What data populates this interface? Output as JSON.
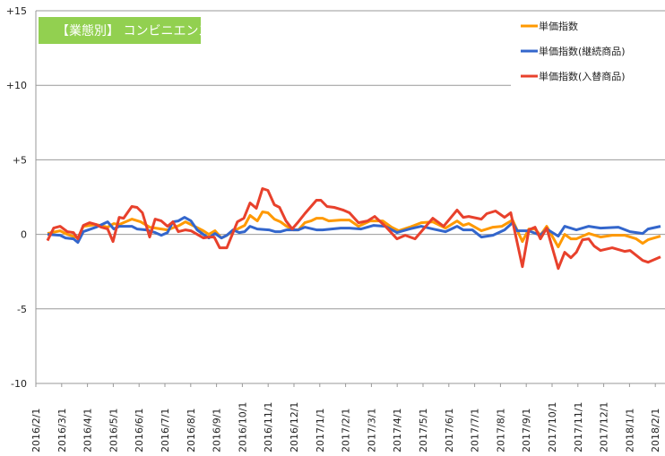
{
  "chart_data": {
    "type": "line",
    "title": "【業態別】 コンビニエンスストア",
    "colors": {
      "title_bg": "#92d050",
      "grid": "#999999"
    },
    "x_unit": "months since 2016/2/1",
    "x_tick_labels": [
      "2016/2/1",
      "2016/3/1",
      "2016/4/1",
      "2016/5/1",
      "2016/6/1",
      "2016/7/1",
      "2016/8/1",
      "2016/9/1",
      "2016/10/1",
      "2016/11/1",
      "2016/12/1",
      "2017/1/1",
      "2017/2/1",
      "2017/3/1",
      "2017/4/1",
      "2017/5/1",
      "2017/6/1",
      "2017/7/1",
      "2017/8/1",
      "2017/9/1",
      "2017/10/1",
      "2017/11/1",
      "2017/12/1",
      "2018/1/1",
      "2018/2/1"
    ],
    "xlim": [
      0,
      24.35
    ],
    "ylim": [
      -10,
      15
    ],
    "y_ticks": [
      {
        "v": 15,
        "label": "+15"
      },
      {
        "v": 10,
        "label": "+10"
      },
      {
        "v": 5,
        "label": "+5"
      },
      {
        "v": 0,
        "label": "0"
      },
      {
        "v": -5,
        "label": "-5"
      },
      {
        "v": -10,
        "label": "-10"
      }
    ],
    "grid": true,
    "legend_position": "top-right",
    "series": [
      {
        "name": "単価指数",
        "color": "#ff9900",
        "points": [
          [
            0.45,
            0.06
          ],
          [
            0.94,
            0.24
          ],
          [
            1.22,
            0
          ],
          [
            1.63,
            -0.24
          ],
          [
            1.84,
            0.54
          ],
          [
            2.33,
            0.66
          ],
          [
            2.78,
            0.48
          ],
          [
            3.02,
            0.72
          ],
          [
            3.23,
            0.66
          ],
          [
            3.72,
            1.02
          ],
          [
            4.06,
            0.84
          ],
          [
            4.41,
            0.48
          ],
          [
            4.86,
            0.36
          ],
          [
            5.1,
            0.3
          ],
          [
            5.56,
            0.6
          ],
          [
            5.8,
            0.84
          ],
          [
            6.01,
            0.66
          ],
          [
            6.49,
            0.24
          ],
          [
            6.7,
            0
          ],
          [
            6.94,
            0.24
          ],
          [
            7.19,
            -0.24
          ],
          [
            7.4,
            -0.06
          ],
          [
            7.88,
            0.42
          ],
          [
            8.09,
            0.6
          ],
          [
            8.3,
            1.27
          ],
          [
            8.58,
            0.9
          ],
          [
            8.78,
            1.51
          ],
          [
            8.99,
            1.45
          ],
          [
            9.24,
            1.02
          ],
          [
            9.48,
            0.84
          ],
          [
            9.72,
            0.54
          ],
          [
            9.97,
            0.3
          ],
          [
            10.17,
            0.3
          ],
          [
            10.42,
            0.78
          ],
          [
            10.66,
            0.9
          ],
          [
            10.87,
            1.08
          ],
          [
            11.11,
            1.08
          ],
          [
            11.35,
            0.9
          ],
          [
            11.81,
            0.96
          ],
          [
            12.15,
            0.96
          ],
          [
            12.5,
            0.54
          ],
          [
            12.95,
            0.9
          ],
          [
            13.44,
            0.9
          ],
          [
            13.78,
            0.48
          ],
          [
            14.06,
            0.24
          ],
          [
            14.48,
            0.48
          ],
          [
            14.93,
            0.78
          ],
          [
            15.38,
            0.84
          ],
          [
            15.87,
            0.42
          ],
          [
            16.32,
            0.9
          ],
          [
            16.56,
            0.6
          ],
          [
            16.77,
            0.72
          ],
          [
            17.26,
            0.24
          ],
          [
            17.71,
            0.48
          ],
          [
            18.06,
            0.54
          ],
          [
            18.47,
            0.96
          ],
          [
            18.85,
            -0.48
          ],
          [
            19.1,
            0.36
          ],
          [
            19.34,
            0.36
          ],
          [
            19.55,
            -0.06
          ],
          [
            19.79,
            0.54
          ],
          [
            20.24,
            -0.84
          ],
          [
            20.49,
            0
          ],
          [
            20.73,
            -0.3
          ],
          [
            20.94,
            -0.3
          ],
          [
            21.42,
            0.06
          ],
          [
            21.88,
            -0.18
          ],
          [
            22.33,
            -0.06
          ],
          [
            22.81,
            -0.06
          ],
          [
            23.26,
            -0.3
          ],
          [
            23.51,
            -0.6
          ],
          [
            23.72,
            -0.36
          ],
          [
            24.2,
            -0.12
          ]
        ]
      },
      {
        "name": "単価指数(継続商品)",
        "color": "#3366cc",
        "points": [
          [
            0.45,
            0
          ],
          [
            0.94,
            -0.06
          ],
          [
            1.15,
            -0.24
          ],
          [
            1.46,
            -0.3
          ],
          [
            1.63,
            -0.54
          ],
          [
            1.84,
            0.18
          ],
          [
            2.33,
            0.48
          ],
          [
            2.78,
            0.84
          ],
          [
            3.02,
            0.36
          ],
          [
            3.23,
            0.54
          ],
          [
            3.72,
            0.54
          ],
          [
            3.92,
            0.36
          ],
          [
            4.27,
            0.3
          ],
          [
            4.62,
            0.12
          ],
          [
            4.86,
            -0.06
          ],
          [
            5.1,
            0.12
          ],
          [
            5.31,
            0.84
          ],
          [
            5.52,
            0.9
          ],
          [
            5.76,
            1.14
          ],
          [
            6.01,
            0.9
          ],
          [
            6.25,
            0.3
          ],
          [
            6.49,
            0
          ],
          [
            6.7,
            -0.24
          ],
          [
            6.94,
            0.06
          ],
          [
            7.19,
            -0.24
          ],
          [
            7.4,
            -0.06
          ],
          [
            7.64,
            0.3
          ],
          [
            7.88,
            0.12
          ],
          [
            8.09,
            0.18
          ],
          [
            8.3,
            0.54
          ],
          [
            8.58,
            0.36
          ],
          [
            9.03,
            0.3
          ],
          [
            9.27,
            0.18
          ],
          [
            9.48,
            0.18
          ],
          [
            9.72,
            0.3
          ],
          [
            10.17,
            0.3
          ],
          [
            10.42,
            0.48
          ],
          [
            10.87,
            0.3
          ],
          [
            11.11,
            0.3
          ],
          [
            11.81,
            0.42
          ],
          [
            12.15,
            0.42
          ],
          [
            12.6,
            0.36
          ],
          [
            13.09,
            0.6
          ],
          [
            13.54,
            0.54
          ],
          [
            13.99,
            0.12
          ],
          [
            14.48,
            0.36
          ],
          [
            14.93,
            0.54
          ],
          [
            15.38,
            0.36
          ],
          [
            15.87,
            0.18
          ],
          [
            16.32,
            0.54
          ],
          [
            16.56,
            0.3
          ],
          [
            16.91,
            0.3
          ],
          [
            17.26,
            -0.18
          ],
          [
            17.71,
            -0.06
          ],
          [
            18.16,
            0.3
          ],
          [
            18.47,
            0.78
          ],
          [
            18.65,
            0.24
          ],
          [
            19.1,
            0.24
          ],
          [
            19.55,
            -0.06
          ],
          [
            19.79,
            0.36
          ],
          [
            20.24,
            -0.12
          ],
          [
            20.49,
            0.54
          ],
          [
            20.94,
            0.3
          ],
          [
            21.42,
            0.54
          ],
          [
            21.88,
            0.42
          ],
          [
            22.57,
            0.48
          ],
          [
            23.02,
            0.18
          ],
          [
            23.51,
            0.06
          ],
          [
            23.72,
            0.36
          ],
          [
            24.2,
            0.54
          ]
        ]
      },
      {
        "name": "単価指数(入替商品)",
        "color": "#e8412c",
        "points": [
          [
            0.45,
            -0.42
          ],
          [
            0.69,
            0.42
          ],
          [
            0.94,
            0.54
          ],
          [
            1.22,
            0.18
          ],
          [
            1.46,
            0.12
          ],
          [
            1.63,
            -0.3
          ],
          [
            1.84,
            0.6
          ],
          [
            2.08,
            0.78
          ],
          [
            2.33,
            0.66
          ],
          [
            2.53,
            0.48
          ],
          [
            2.78,
            0.36
          ],
          [
            2.99,
            -0.48
          ],
          [
            3.23,
            1.14
          ],
          [
            3.4,
            1.08
          ],
          [
            3.72,
            1.87
          ],
          [
            3.92,
            1.81
          ],
          [
            4.13,
            1.45
          ],
          [
            4.41,
            -0.18
          ],
          [
            4.62,
            1.02
          ],
          [
            4.86,
            0.9
          ],
          [
            5.1,
            0.54
          ],
          [
            5.31,
            0.84
          ],
          [
            5.52,
            0.18
          ],
          [
            5.8,
            0.3
          ],
          [
            6.01,
            0.24
          ],
          [
            6.25,
            0
          ],
          [
            6.49,
            -0.24
          ],
          [
            6.7,
            -0.18
          ],
          [
            6.91,
            -0.18
          ],
          [
            7.12,
            -0.9
          ],
          [
            7.4,
            -0.9
          ],
          [
            7.57,
            -0.18
          ],
          [
            7.81,
            0.84
          ],
          [
            8.06,
            1.08
          ],
          [
            8.3,
            2.11
          ],
          [
            8.54,
            1.75
          ],
          [
            8.78,
            3.07
          ],
          [
            8.99,
            2.95
          ],
          [
            9.24,
            1.99
          ],
          [
            9.44,
            1.81
          ],
          [
            9.69,
            0.9
          ],
          [
            9.93,
            0.36
          ],
          [
            10.17,
            0.84
          ],
          [
            10.42,
            1.39
          ],
          [
            10.87,
            2.29
          ],
          [
            11.04,
            2.29
          ],
          [
            11.28,
            1.87
          ],
          [
            11.56,
            1.81
          ],
          [
            11.91,
            1.63
          ],
          [
            12.15,
            1.45
          ],
          [
            12.5,
            0.78
          ],
          [
            12.85,
            0.9
          ],
          [
            13.13,
            1.2
          ],
          [
            13.54,
            0.54
          ],
          [
            13.99,
            -0.3
          ],
          [
            14.31,
            -0.06
          ],
          [
            14.69,
            -0.3
          ],
          [
            15.38,
            1.08
          ],
          [
            15.8,
            0.54
          ],
          [
            16.32,
            1.63
          ],
          [
            16.56,
            1.14
          ],
          [
            16.77,
            1.2
          ],
          [
            17.26,
            1.02
          ],
          [
            17.47,
            1.39
          ],
          [
            17.81,
            1.57
          ],
          [
            18.16,
            1.14
          ],
          [
            18.4,
            1.45
          ],
          [
            18.85,
            -2.17
          ],
          [
            19.1,
            0.3
          ],
          [
            19.34,
            0.48
          ],
          [
            19.55,
            -0.3
          ],
          [
            19.79,
            0.42
          ],
          [
            20.24,
            -2.29
          ],
          [
            20.49,
            -1.2
          ],
          [
            20.73,
            -1.57
          ],
          [
            20.94,
            -1.2
          ],
          [
            21.18,
            -0.36
          ],
          [
            21.42,
            -0.3
          ],
          [
            21.63,
            -0.78
          ],
          [
            21.88,
            -1.08
          ],
          [
            22.33,
            -0.9
          ],
          [
            22.81,
            -1.14
          ],
          [
            23.02,
            -1.08
          ],
          [
            23.51,
            -1.75
          ],
          [
            23.72,
            -1.87
          ],
          [
            24.2,
            -1.51
          ]
        ]
      }
    ]
  }
}
